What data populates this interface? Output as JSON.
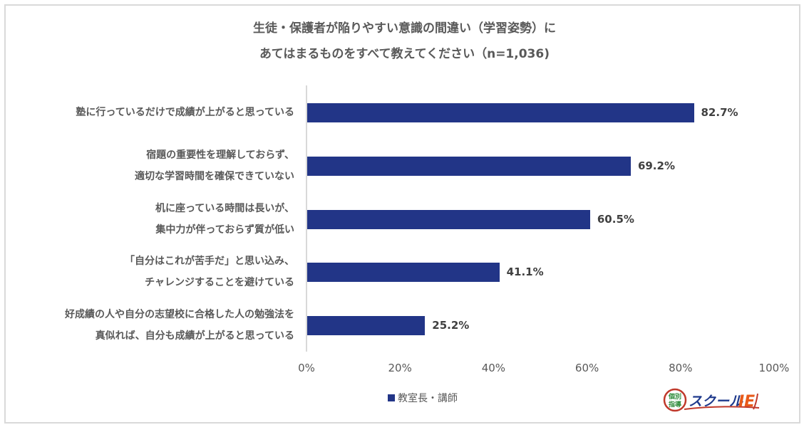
{
  "title": {
    "line1": "生徒・保護者が陥りやすい意識の間違い（学習姿勢）に",
    "line2": "あてはまるものをすべて教えてください（n=1,036)"
  },
  "legend": {
    "label": "教室長・講師",
    "color": "#223587"
  },
  "axis": {
    "ticks": [
      "0%",
      "20%",
      "40%",
      "60%",
      "80%",
      "100%"
    ]
  },
  "bars": [
    {
      "line1": "塾に行っているだけで成績が上がると思っている",
      "line2": "",
      "value": 82.7,
      "label": "82.7%"
    },
    {
      "line1": "宿題の重要性を理解しておらず、",
      "line2": "適切な学習時間を確保できていない",
      "value": 69.2,
      "label": "69.2%"
    },
    {
      "line1": "机に座っている時間は長いが、",
      "line2": "集中力が伴っておらず質が低い",
      "value": 60.5,
      "label": "60.5%"
    },
    {
      "line1": "「自分はこれが苦手だ」と思い込み、",
      "line2": "チャレンジすることを避けている",
      "value": 41.1,
      "label": "41.1%"
    },
    {
      "line1": "好成績の人や自分の志望校に合格した人の勉強法を",
      "line2": "真似れば、自分も成績が上がると思っている",
      "value": 25.2,
      "label": "25.2%"
    }
  ],
  "logo": {
    "badge_top": "個別",
    "badge_bottom": "指導",
    "text": "スクール",
    "ie": "IE"
  },
  "chart_data": {
    "type": "bar",
    "orientation": "horizontal",
    "title": "生徒・保護者が陥りやすい意識の間違い（学習姿勢）にあてはまるものをすべて教えてください（n=1,036)",
    "categories": [
      "塾に行っているだけで成績が上がると思っている",
      "宿題の重要性を理解しておらず、適切な学習時間を確保できていない",
      "机に座っている時間は長いが、集中力が伴っておらず質が低い",
      "「自分はこれが苦手だ」と思い込み、チャレンジすることを避けている",
      "好成績の人や自分の志望校に合格した人の勉強法を真似れば、自分も成績が上がると思っている"
    ],
    "series": [
      {
        "name": "教室長・講師",
        "values": [
          82.7,
          69.2,
          60.5,
          41.1,
          25.2
        ],
        "color": "#223587"
      }
    ],
    "xlabel": "",
    "ylabel": "",
    "xlim": [
      0,
      100
    ],
    "x_ticks": [
      "0%",
      "20%",
      "40%",
      "60%",
      "80%",
      "100%"
    ],
    "grid": false,
    "legend_position": "bottom",
    "data_labels": true
  }
}
